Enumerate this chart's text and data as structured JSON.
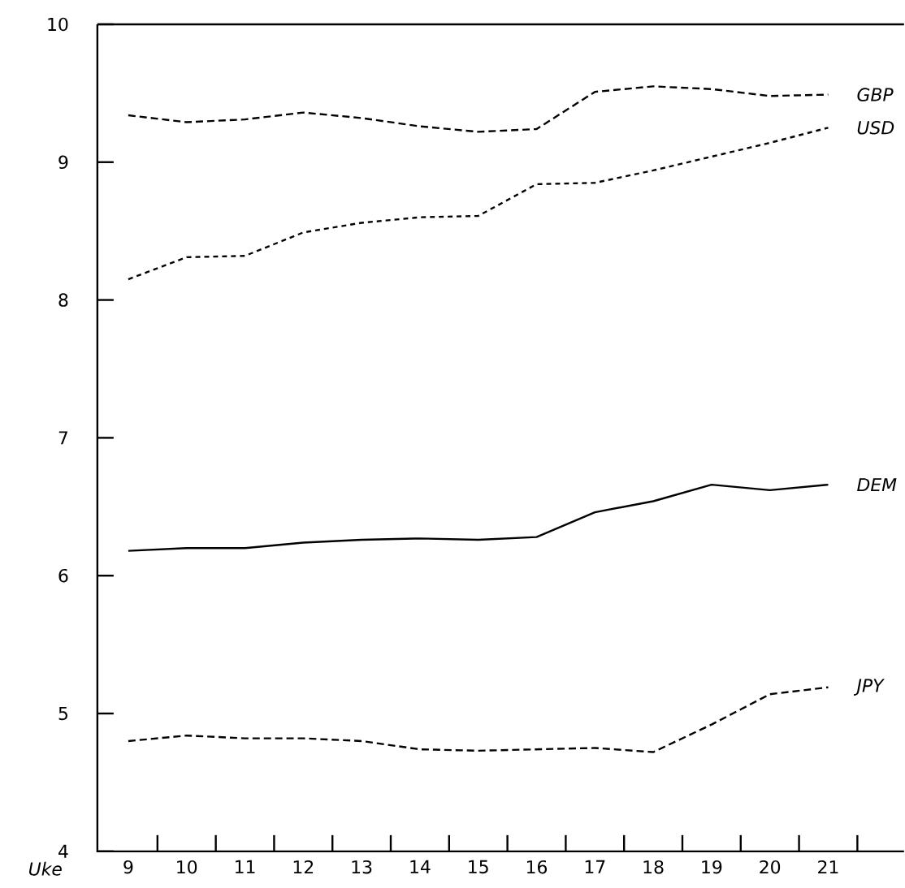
{
  "chart_data": {
    "type": "line",
    "xlabel": "Uke",
    "categories": [
      "9",
      "10",
      "11",
      "12",
      "13",
      "14",
      "15",
      "16",
      "17",
      "18",
      "19",
      "20",
      "21"
    ],
    "ylim": [
      4,
      10
    ],
    "yticks": [
      4,
      5,
      6,
      7,
      8,
      9,
      10
    ],
    "grid": false,
    "legend": false,
    "marker": "none",
    "series": [
      {
        "name": "GBP",
        "color": "#000000",
        "line_style": "dashed",
        "values": [
          9.34,
          9.29,
          9.31,
          9.36,
          9.32,
          9.26,
          9.22,
          9.24,
          9.51,
          9.55,
          9.53,
          9.48,
          9.49
        ]
      },
      {
        "name": "USD",
        "color": "#000000",
        "line_style": "dotted",
        "values": [
          8.15,
          8.31,
          8.32,
          8.49,
          8.56,
          8.6,
          8.61,
          8.84,
          8.85,
          8.94,
          9.04,
          9.14,
          9.25
        ]
      },
      {
        "name": "DEM",
        "color": "#000000",
        "line_style": "solid",
        "values": [
          6.18,
          6.2,
          6.2,
          6.24,
          6.26,
          6.27,
          6.26,
          6.28,
          6.46,
          6.54,
          6.66,
          6.62,
          6.66
        ]
      },
      {
        "name": "JPY",
        "color": "#000000",
        "line_style": "dashed",
        "values": [
          4.8,
          4.84,
          4.82,
          4.82,
          4.8,
          4.74,
          4.73,
          4.74,
          4.75,
          4.72,
          4.92,
          5.14,
          5.19
        ]
      }
    ]
  }
}
